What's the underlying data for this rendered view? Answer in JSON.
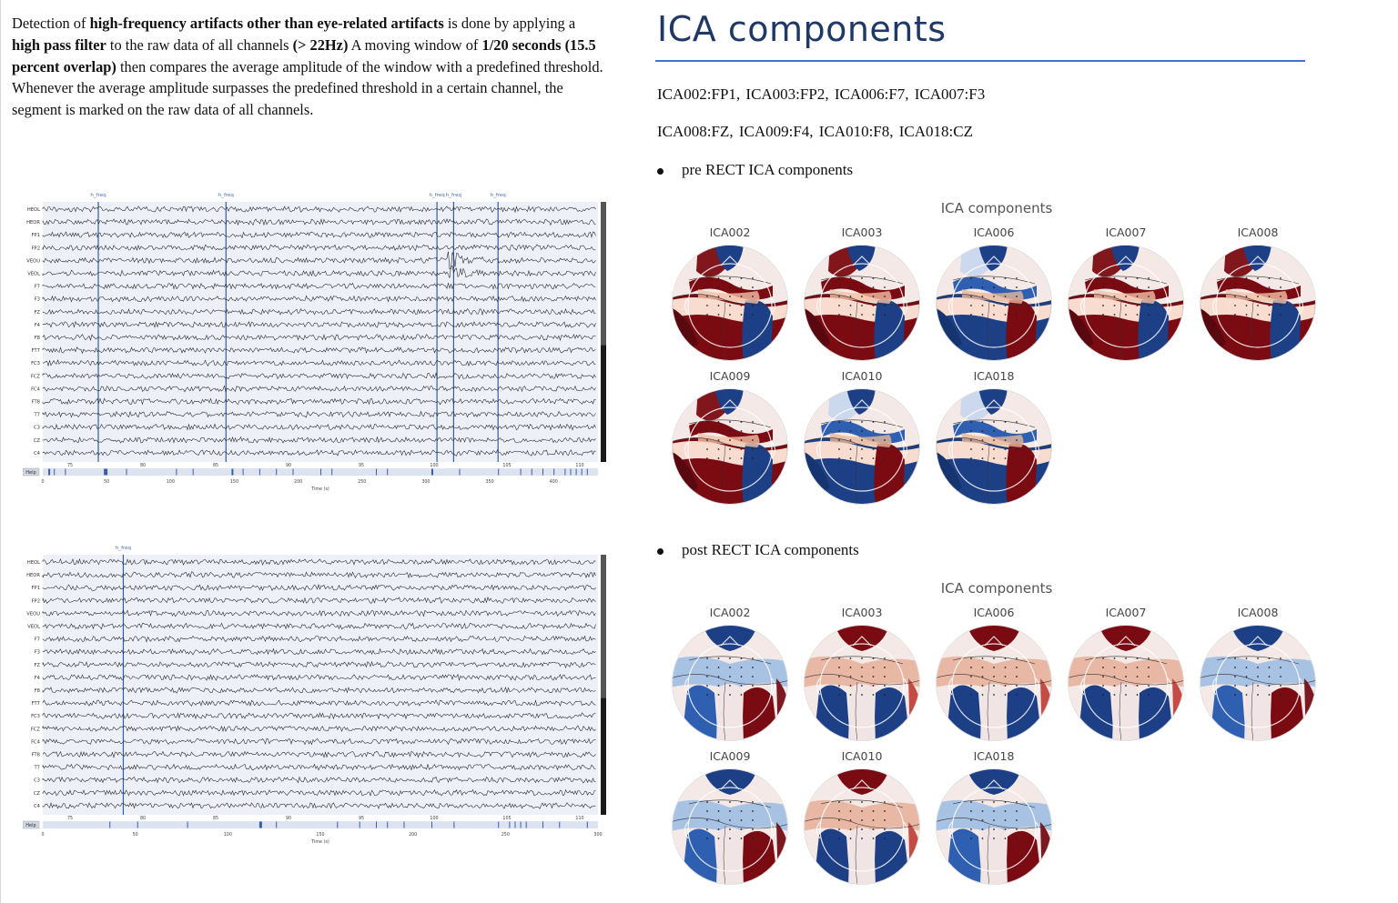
{
  "intro": {
    "p1": "Detection of ",
    "b1": "high-frequency artifacts other than eye-related artifacts",
    "p2": " is done by applying a ",
    "b2": "high pass filter",
    "p3": " to the raw data of all channels ",
    "b3": "(> 22Hz)",
    "p4": " A moving window of ",
    "b4": "1/20 seconds (15.5 percent overlap)",
    "p5": " then compares the average amplitude of the window with a predefined threshold. Whenever the average amplitude surpasses the predefined threshold in a certain channel, the segment is marked on the raw data of all channels."
  },
  "eeg_top": {
    "annotation_label": "h_freq",
    "channels": [
      "HEOL",
      "HEOR",
      "FP1",
      "FP2",
      "VEOU",
      "VEOL",
      "F7",
      "F3",
      "FZ",
      "F4",
      "F8",
      "FT7",
      "FC3",
      "FCZ",
      "FC4",
      "FT8",
      "T7",
      "C3",
      "CZ",
      "C4"
    ],
    "time_ticks": [
      "75",
      "80",
      "85",
      "90",
      "95",
      "100",
      "105",
      "110"
    ],
    "scroll_ticks": [
      "0",
      "50",
      "100",
      "150",
      "200",
      "250",
      "300",
      "350",
      "400"
    ],
    "help_label": "Help",
    "xlabel": "Time (s)"
  },
  "eeg_bottom": {
    "annotation_label": "h_freq",
    "channels": [
      "HEOL",
      "HEOR",
      "FP1",
      "FP2",
      "VEOU",
      "VEOL",
      "F7",
      "F3",
      "FZ",
      "F4",
      "F8",
      "FT7",
      "FC3",
      "FCZ",
      "FC4",
      "FT8",
      "T7",
      "C3",
      "CZ",
      "C4"
    ],
    "time_ticks": [
      "75",
      "80",
      "85",
      "90",
      "95",
      "100",
      "105",
      "110"
    ],
    "scroll_ticks": [
      "0",
      "50",
      "100",
      "150",
      "200",
      "250",
      "300"
    ],
    "help_label": "Help",
    "xlabel": "Time (s)"
  },
  "right": {
    "heading": "ICA components",
    "mapping_line1": "ICA002:FP1, ICA003:FP2, ICA006:F7, ICA007:F3",
    "mapping_line2": "ICA008:FZ, ICA009:F4, ICA010:F8, ICA018:CZ",
    "pre_bullet": "pre RECT ICA components",
    "post_bullet": "post RECT ICA components"
  },
  "pre_fig": {
    "title": "ICA components",
    "labels": [
      "ICA002",
      "ICA003",
      "ICA006",
      "ICA007",
      "ICA008",
      "ICA009",
      "ICA010",
      "ICA018"
    ]
  },
  "post_fig": {
    "title": "ICA components",
    "labels": [
      "ICA002",
      "ICA003",
      "ICA006",
      "ICA007",
      "ICA008",
      "ICA009",
      "ICA010",
      "ICA018"
    ]
  },
  "colors": {
    "red": "#7a0b12",
    "blue": "#1d3f86",
    "heading": "#1f3864",
    "rule": "#4472c4",
    "annot": "#2f5fa8"
  }
}
